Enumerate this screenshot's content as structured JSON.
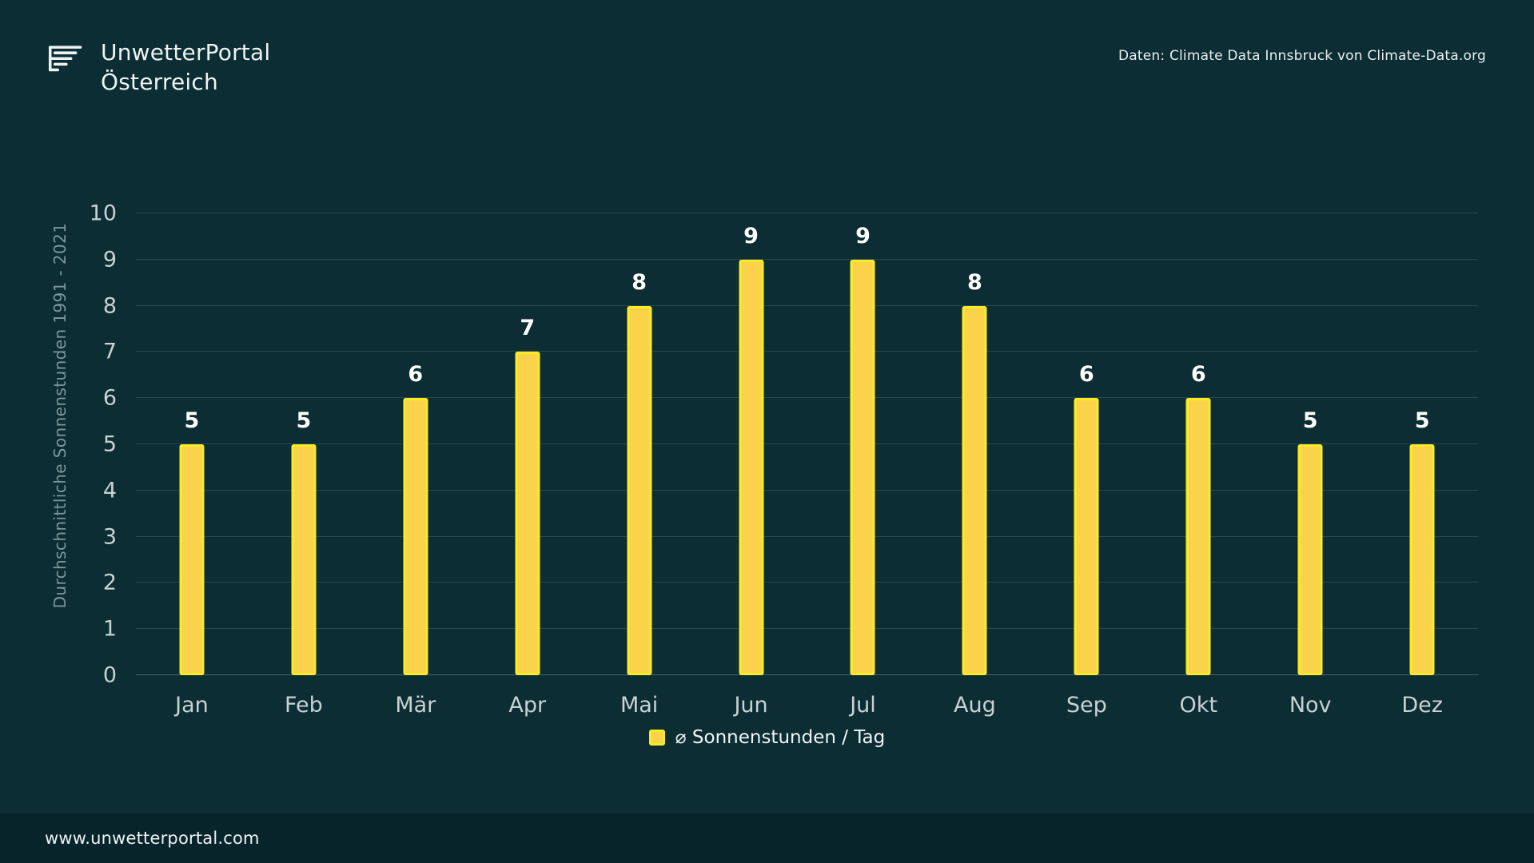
{
  "header": {
    "logo_line1": "UnwetterPortal",
    "logo_line2": "Österreich",
    "source": "Daten: Climate Data Innsbruck von Climate-Data.org"
  },
  "footer": {
    "website": "www.unwetterportal.com"
  },
  "colors": {
    "background": "#0B2D33",
    "footer_background": "#07242A",
    "bar_fill": "#FBD34B",
    "bar_border": "#F8EC25",
    "gridline": "#27494F",
    "text_primary": "#FFFFFF",
    "text_muted": "#C7D2D3",
    "axis_title": "#7E979B"
  },
  "chart_data": {
    "type": "bar",
    "title": "",
    "categories": [
      "Jan",
      "Feb",
      "Mär",
      "Apr",
      "Mai",
      "Jun",
      "Jul",
      "Aug",
      "Sep",
      "Okt",
      "Nov",
      "Dez"
    ],
    "values": [
      5,
      5,
      6,
      7,
      8,
      9,
      9,
      8,
      6,
      6,
      5,
      5
    ],
    "xlabel": "",
    "ylabel": "Durchschnittliche Sonnenstunden 1991 - 2021",
    "ylim": [
      0,
      10
    ],
    "ytick_step": 1,
    "grid": true,
    "legend": "⌀ Sonnenstunden / Tag",
    "legend_position": "bottom",
    "value_labels_shown": true
  }
}
